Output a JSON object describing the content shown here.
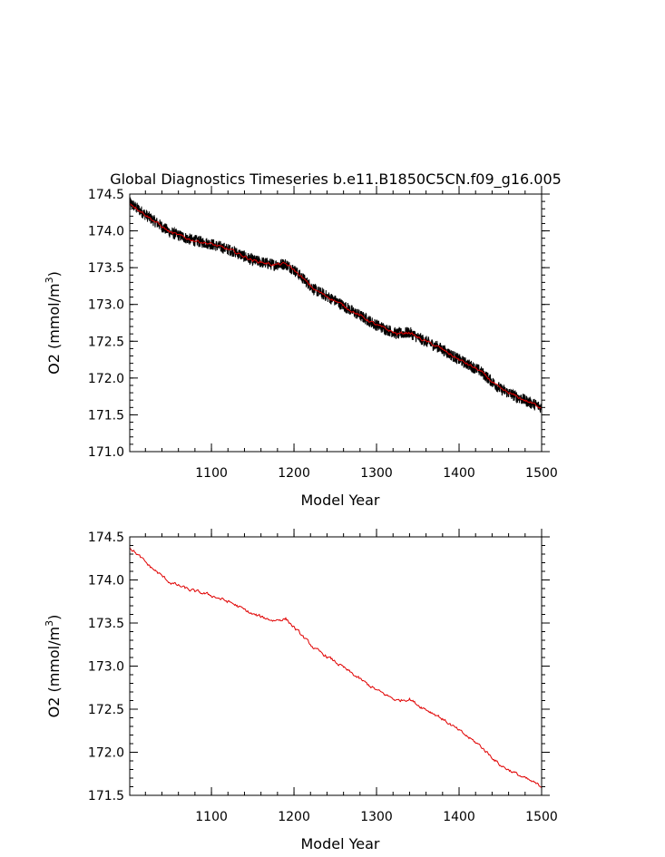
{
  "chart_data": [
    {
      "type": "line",
      "title": "Global Diagnostics Timeseries b.e11.B1850C5CN.f09_g16.005",
      "xlabel": "Model Year",
      "ylabel_main": "O2 (mmol/m",
      "ylabel_sup": "3",
      "ylabel_close": ")",
      "xlim": [
        1001,
        1500
      ],
      "ylim": [
        171.0,
        174.5
      ],
      "x_ticks": [
        1100,
        1200,
        1300,
        1400,
        1500
      ],
      "x_tick_labels": [
        "1100",
        "1200",
        "1300",
        "1400",
        "1500"
      ],
      "y_ticks": [
        171.0,
        171.5,
        172.0,
        172.5,
        173.0,
        173.5,
        174.0,
        174.5
      ],
      "y_tick_labels": [
        "171.0",
        "171.5",
        "172.0",
        "172.5",
        "173.0",
        "173.5",
        "174.0",
        "174.5"
      ],
      "grid": false,
      "series": [
        {
          "kind": "monthly-band",
          "color": "#000000",
          "x": [
            1001,
            1025,
            1050,
            1075,
            1100,
            1125,
            1150,
            1175,
            1190,
            1200,
            1225,
            1250,
            1275,
            1300,
            1325,
            1340,
            1350,
            1375,
            1400,
            1425,
            1450,
            1475,
            1500
          ],
          "y": [
            174.38,
            174.18,
            173.98,
            173.88,
            173.82,
            173.73,
            173.6,
            173.54,
            173.55,
            173.47,
            173.2,
            173.05,
            172.88,
            172.72,
            172.6,
            172.62,
            172.55,
            172.42,
            172.25,
            172.1,
            171.85,
            171.72,
            171.6
          ],
          "spread": 0.08
        },
        {
          "kind": "annual-mean",
          "color": "#e00000",
          "x": [
            1001,
            1025,
            1050,
            1075,
            1100,
            1125,
            1150,
            1175,
            1190,
            1200,
            1225,
            1250,
            1275,
            1300,
            1325,
            1340,
            1350,
            1375,
            1400,
            1425,
            1450,
            1475,
            1500
          ],
          "y": [
            174.38,
            174.18,
            173.98,
            173.88,
            173.82,
            173.73,
            173.6,
            173.54,
            173.55,
            173.47,
            173.2,
            173.05,
            172.88,
            172.72,
            172.6,
            172.62,
            172.55,
            172.42,
            172.25,
            172.1,
            171.85,
            171.72,
            171.6
          ]
        }
      ]
    },
    {
      "type": "line",
      "title": "",
      "xlabel": "Model Year",
      "ylabel_main": "O2 (mmol/m",
      "ylabel_sup": "3",
      "ylabel_close": ")",
      "xlim": [
        1001,
        1500
      ],
      "ylim": [
        171.5,
        174.5
      ],
      "x_ticks": [
        1100,
        1200,
        1300,
        1400,
        1500
      ],
      "x_tick_labels": [
        "1100",
        "1200",
        "1300",
        "1400",
        "1500"
      ],
      "y_ticks": [
        171.5,
        172.0,
        172.5,
        173.0,
        173.5,
        174.0,
        174.5
      ],
      "y_tick_labels": [
        "171.5",
        "172.0",
        "172.5",
        "173.0",
        "173.5",
        "174.0",
        "174.5"
      ],
      "grid": false,
      "series": [
        {
          "kind": "annual-mean",
          "color": "#e00000",
          "x": [
            1001,
            1025,
            1050,
            1075,
            1100,
            1125,
            1150,
            1175,
            1190,
            1200,
            1225,
            1250,
            1275,
            1300,
            1325,
            1340,
            1350,
            1375,
            1400,
            1425,
            1450,
            1475,
            1500
          ],
          "y": [
            174.38,
            174.16,
            173.97,
            173.88,
            173.82,
            173.73,
            173.6,
            173.53,
            173.55,
            173.45,
            173.2,
            173.05,
            172.88,
            172.72,
            172.6,
            172.62,
            172.55,
            172.42,
            172.25,
            172.08,
            171.85,
            171.72,
            171.6
          ]
        }
      ]
    }
  ]
}
